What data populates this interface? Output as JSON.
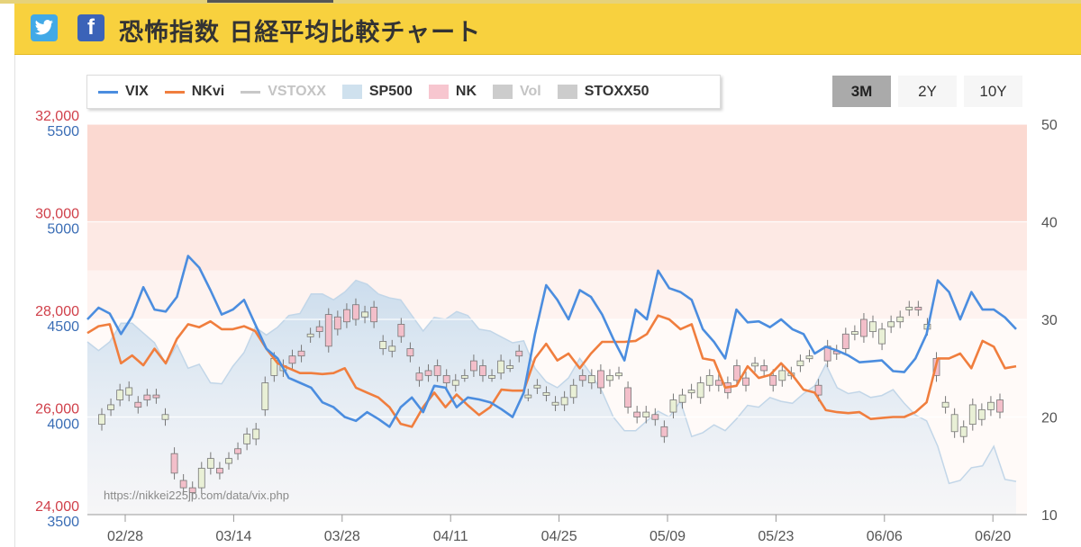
{
  "page": {
    "title": "恐怖指数 日経平均比較チャート",
    "social": [
      "twitter-icon",
      "facebook-icon"
    ],
    "facebook_glyph": "f"
  },
  "legend": [
    {
      "label": "VIX",
      "kind": "line",
      "color": "#4b8ddf",
      "active": true
    },
    {
      "label": "NKvi",
      "kind": "line",
      "color": "#f07e3e",
      "active": true
    },
    {
      "label": "VSTOXX",
      "kind": "line",
      "color": "#c8c8c8",
      "active": false
    },
    {
      "label": "SP500",
      "kind": "area",
      "color": "#cfe1ee",
      "active": true
    },
    {
      "label": "NK",
      "kind": "box",
      "color": "#f7c6cf",
      "active": true
    },
    {
      "label": "Vol",
      "kind": "box",
      "color": "#cccccc",
      "active": false
    },
    {
      "label": "STOXX50",
      "kind": "box",
      "color": "#cccccc",
      "active": true
    }
  ],
  "ranges": [
    {
      "label": "3M",
      "active": true
    },
    {
      "label": "2Y",
      "active": false
    },
    {
      "label": "10Y",
      "active": false
    }
  ],
  "watermark": "https://nikkei225jp.com/data/vix.php",
  "chart_data": {
    "type": "line",
    "x_ticks": [
      "02/28",
      "03/14",
      "03/28",
      "04/11",
      "04/25",
      "05/09",
      "05/23",
      "06/06",
      "06/20"
    ],
    "nk_axis": {
      "ticks": [
        "24,000",
        "26,000",
        "28,000",
        "30,000",
        "32,000"
      ],
      "values": [
        24000,
        26000,
        28000,
        30000,
        32000
      ],
      "color": "#d0404a"
    },
    "sp_axis": {
      "ticks": [
        "3500",
        "4000",
        "4500",
        "5000",
        "5500"
      ],
      "values": [
        3500,
        4000,
        4500,
        5000,
        5500
      ],
      "color": "#3a6db5"
    },
    "vix_axis": {
      "ticks": [
        "10",
        "20",
        "30",
        "40",
        "50"
      ],
      "values": [
        10,
        20,
        30,
        40,
        50
      ],
      "range": [
        10,
        50
      ]
    },
    "bands": [
      {
        "from": 40,
        "to": 50,
        "color": "#fbd9d1"
      },
      {
        "from": 35,
        "to": 40,
        "color": "#fde9e4"
      },
      {
        "from": 30,
        "to": 35,
        "color": "#fef3f0"
      },
      {
        "from": 10,
        "to": 30,
        "color": "#fffaf8"
      }
    ],
    "series": [
      {
        "name": "VIX",
        "color": "#4b8ddf",
        "values": [
          30.0,
          31.2,
          30.6,
          28.5,
          30.3,
          33.3,
          31.0,
          30.8,
          32.3,
          36.5,
          35.3,
          33.0,
          30.5,
          31.0,
          32.0,
          29.5,
          27.0,
          26.0,
          24.0,
          23.5,
          23.0,
          21.5,
          21.0,
          20.0,
          19.6,
          20.5,
          19.8,
          19.0,
          21.0,
          22.0,
          20.5,
          23.2,
          23.0,
          21.0,
          22.0,
          21.8,
          21.5,
          20.8,
          20.0,
          22.5,
          28.5,
          33.5,
          32.0,
          30.0,
          33.0,
          32.3,
          30.5,
          28.0,
          25.8,
          31.0,
          30.0,
          35.0,
          33.2,
          32.8,
          32.0,
          29.0,
          27.7,
          26.0,
          31.0,
          29.7,
          29.8,
          29.2,
          30.0,
          29.0,
          28.5,
          26.5,
          27.2,
          26.8,
          26.3,
          25.6,
          25.7,
          25.8,
          24.7,
          24.6,
          26.0,
          28.5,
          34.0,
          32.8,
          30.0,
          32.8,
          31.0,
          31.0,
          30.2,
          29.0
        ]
      },
      {
        "name": "NKvi",
        "color": "#f07e3e",
        "values": [
          28.6,
          29.3,
          29.5,
          25.5,
          26.3,
          25.3,
          27.0,
          25.5,
          28.0,
          29.5,
          29.2,
          29.8,
          29.0,
          29.0,
          29.3,
          28.8,
          27.0,
          25.5,
          25.0,
          24.5,
          24.5,
          24.4,
          24.5,
          25.0,
          23.0,
          22.5,
          22.0,
          21.0,
          19.3,
          19.0,
          21.0,
          22.5,
          21.0,
          22.3,
          21.2,
          20.2,
          21.0,
          22.8,
          22.7,
          22.7,
          26.0,
          27.5,
          25.8,
          26.5,
          25.0,
          26.5,
          27.7,
          27.7,
          27.7,
          27.8,
          28.5,
          30.4,
          30.0,
          29.0,
          29.5,
          26.0,
          25.8,
          23.0,
          23.2,
          25.2,
          24.0,
          24.3,
          25.5,
          24.3,
          22.8,
          22.5,
          20.7,
          20.5,
          20.4,
          20.5,
          19.8,
          19.9,
          20.0,
          20.0,
          20.5,
          21.5,
          26.0,
          26.0,
          26.5,
          25.0,
          27.8,
          27.2,
          25.0,
          25.2
        ]
      },
      {
        "name": "SP500",
        "color": "#cfe1ee",
        "values": [
          4385,
          4340,
          4385,
          4480,
          4480,
          4430,
          4380,
          4270,
          4370,
          4250,
          4270,
          4175,
          4170,
          4260,
          4330,
          4460,
          4420,
          4460,
          4520,
          4530,
          4630,
          4630,
          4600,
          4640,
          4700,
          4680,
          4630,
          4610,
          4600,
          4520,
          4440,
          4510,
          4500,
          4540,
          4520,
          4450,
          4440,
          4410,
          4380,
          4390,
          4250,
          4180,
          4150,
          4200,
          4300,
          4220,
          4130,
          4000,
          3930,
          3930,
          3980,
          4030,
          4000,
          4080,
          3900,
          3920,
          3960,
          3930,
          3990,
          4060,
          4050,
          4100,
          4080,
          4070,
          4120,
          4160,
          4270,
          4150,
          4120,
          4130,
          4100,
          4110,
          4140,
          4070,
          4010,
          3980,
          3850,
          3660,
          3675,
          3740,
          3750,
          3850,
          3680,
          3670
        ]
      }
    ],
    "nk_candles_open_close": [
      [
        25850,
        26050
      ],
      [
        26150,
        26250
      ],
      [
        26350,
        26550
      ],
      [
        26450,
        26600
      ],
      [
        26300,
        26200
      ],
      [
        26450,
        26350
      ],
      [
        26450,
        26400
      ],
      [
        25950,
        26050
      ],
      [
        25250,
        24850
      ],
      [
        24700,
        24550
      ],
      [
        24550,
        24450
      ],
      [
        24550,
        24950
      ],
      [
        24950,
        25150
      ],
      [
        24950,
        24850
      ],
      [
        25050,
        25150
      ],
      [
        25350,
        25250
      ],
      [
        25450,
        25650
      ],
      [
        25550,
        25750
      ],
      [
        26150,
        26700
      ],
      [
        26850,
        27200
      ],
      [
        26950,
        27050
      ],
      [
        27250,
        27100
      ],
      [
        27350,
        27250
      ],
      [
        27650,
        27700
      ],
      [
        27850,
        27750
      ],
      [
        28100,
        27450
      ],
      [
        28050,
        27800
      ],
      [
        28200,
        27950
      ],
      [
        28300,
        28000
      ],
      [
        28050,
        28150
      ],
      [
        28250,
        27950
      ],
      [
        27400,
        27550
      ],
      [
        27350,
        27450
      ],
      [
        27900,
        27650
      ],
      [
        27400,
        27250
      ],
      [
        26900,
        26750
      ],
      [
        26950,
        26850
      ],
      [
        27050,
        26850
      ],
      [
        26850,
        26700
      ],
      [
        26650,
        26750
      ],
      [
        26850,
        26850
      ],
      [
        27150,
        26950
      ],
      [
        27050,
        26850
      ],
      [
        26850,
        26850
      ],
      [
        26900,
        27150
      ],
      [
        27050,
        27050
      ],
      [
        27350,
        27250
      ],
      [
        26450,
        26450
      ],
      [
        26600,
        26650
      ],
      [
        26450,
        26500
      ],
      [
        26250,
        26300
      ],
      [
        26250,
        26400
      ],
      [
        26400,
        26650
      ],
      [
        26850,
        26750
      ],
      [
        26700,
        26850
      ],
      [
        26950,
        26600
      ],
      [
        26750,
        26850
      ],
      [
        26900,
        26900
      ],
      [
        26600,
        26200
      ],
      [
        26100,
        26000
      ],
      [
        26000,
        26100
      ],
      [
        26050,
        25950
      ],
      [
        25800,
        25600
      ],
      [
        26100,
        26350
      ],
      [
        26300,
        26450
      ],
      [
        26500,
        26550
      ],
      [
        26400,
        26700
      ],
      [
        26650,
        26850
      ],
      [
        26750,
        26650
      ],
      [
        26700,
        26500
      ],
      [
        27050,
        26750
      ],
      [
        26800,
        26650
      ],
      [
        27050,
        27100
      ],
      [
        27050,
        26950
      ],
      [
        26850,
        26650
      ],
      [
        26750,
        26950
      ],
      [
        26900,
        26900
      ],
      [
        27050,
        27150
      ],
      [
        27250,
        27250
      ],
      [
        26650,
        26450
      ],
      [
        27450,
        27150
      ],
      [
        27350,
        27300
      ],
      [
        27700,
        27400
      ],
      [
        27700,
        27750
      ],
      [
        28000,
        27650
      ],
      [
        27750,
        27950
      ],
      [
        27500,
        27800
      ],
      [
        27850,
        27950
      ],
      [
        27950,
        28050
      ],
      [
        28200,
        28250
      ],
      [
        28250,
        28200
      ],
      [
        27800,
        27900
      ],
      [
        27200,
        26850
      ],
      [
        26200,
        26300
      ],
      [
        25700,
        26050
      ],
      [
        25600,
        25800
      ],
      [
        25850,
        26250
      ],
      [
        25950,
        26150
      ],
      [
        26150,
        26300
      ],
      [
        26350,
        26100
      ]
    ]
  }
}
